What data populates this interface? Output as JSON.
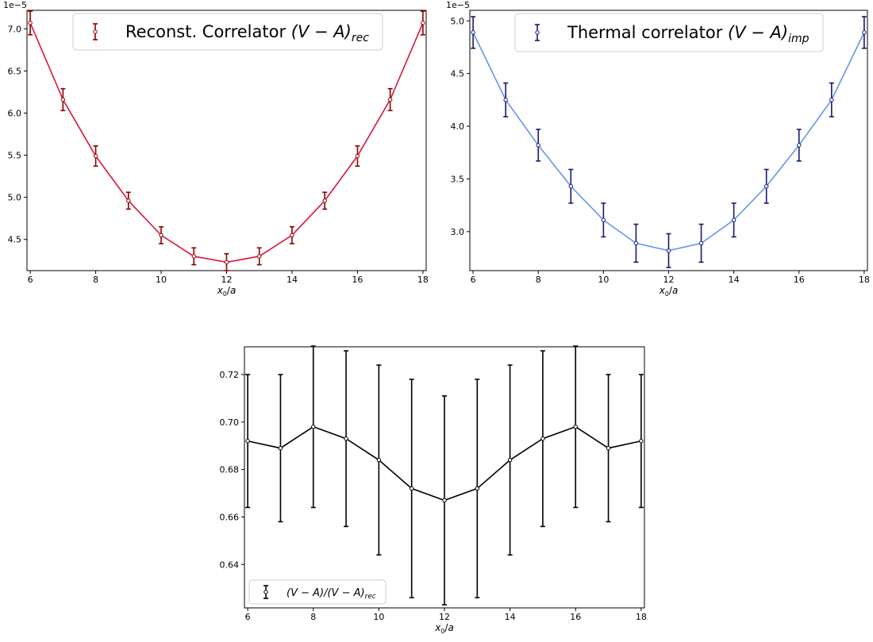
{
  "chart_data": [
    {
      "type": "line",
      "panel": "top-left",
      "x": [
        6,
        7,
        8,
        9,
        10,
        11,
        12,
        13,
        14,
        15,
        16,
        17,
        18
      ],
      "xlabel": "x0/a",
      "xticks": [
        "6",
        "8",
        "10",
        "12",
        "14",
        "16",
        "18"
      ],
      "ylim": [
        4.13,
        7.22
      ],
      "yticks": [
        "4.5",
        "5.0",
        "5.5",
        "6.0",
        "6.5",
        "7.0"
      ],
      "y_multiplier": "1e−5",
      "series": [
        {
          "name": "Reconst. Correlator (V − A)rec",
          "values": [
            7.07,
            6.16,
            5.49,
            4.96,
            4.55,
            4.3,
            4.23,
            4.3,
            4.55,
            4.96,
            5.49,
            6.16,
            7.07
          ],
          "errors": [
            0.14,
            0.13,
            0.12,
            0.1,
            0.1,
            0.1,
            0.1,
            0.1,
            0.1,
            0.1,
            0.12,
            0.13,
            0.14
          ],
          "line_color": "#dc143c",
          "errorbar_color": "#8b0000",
          "marker": "open-circle"
        }
      ],
      "legend": {
        "position": "top-center",
        "label_main": "Reconst. Correlator",
        "label_math": "(V − A)",
        "label_sub": "rec"
      }
    },
    {
      "type": "line",
      "panel": "top-right",
      "x": [
        6,
        7,
        8,
        9,
        10,
        11,
        12,
        13,
        14,
        15,
        16,
        17,
        18
      ],
      "xlabel": "x0/a",
      "xticks": [
        "6",
        "8",
        "10",
        "12",
        "14",
        "16",
        "18"
      ],
      "ylim": [
        2.63,
        5.1
      ],
      "yticks": [
        "3.0",
        "3.5",
        "4.0",
        "4.5",
        "5.0"
      ],
      "y_multiplier": "1e−5",
      "series": [
        {
          "name": "Thermal correlator (V − A)imp",
          "values": [
            4.89,
            4.25,
            3.82,
            3.43,
            3.11,
            2.89,
            2.82,
            2.89,
            3.11,
            3.43,
            3.82,
            4.25,
            4.89
          ],
          "errors": [
            0.15,
            0.16,
            0.15,
            0.16,
            0.16,
            0.18,
            0.16,
            0.18,
            0.16,
            0.16,
            0.15,
            0.16,
            0.15
          ],
          "line_color": "#6495ed",
          "errorbar_color": "#191970",
          "marker": "open-circle"
        }
      ],
      "legend": {
        "position": "top-center",
        "label_main": "Thermal correlator",
        "label_math": "(V − A)",
        "label_sub": "imp"
      }
    },
    {
      "type": "line",
      "panel": "bottom",
      "x": [
        6,
        7,
        8,
        9,
        10,
        11,
        12,
        13,
        14,
        15,
        16,
        17,
        18
      ],
      "xlabel": "x0/a",
      "xticks": [
        "6",
        "8",
        "10",
        "12",
        "14",
        "16",
        "18"
      ],
      "ylim": [
        0.6217,
        0.7317
      ],
      "yticks": [
        "0.64",
        "0.66",
        "0.68",
        "0.70",
        "0.72"
      ],
      "series": [
        {
          "name": "(V − A)/(V − A)rec",
          "values": [
            0.692,
            0.689,
            0.698,
            0.693,
            0.684,
            0.672,
            0.667,
            0.672,
            0.684,
            0.693,
            0.698,
            0.689,
            0.692
          ],
          "errors": [
            0.028,
            0.031,
            0.034,
            0.037,
            0.04,
            0.046,
            0.044,
            0.046,
            0.04,
            0.037,
            0.034,
            0.031,
            0.028
          ],
          "line_color": "#000000",
          "errorbar_color": "#000000",
          "marker": "open-circle"
        }
      ],
      "legend": {
        "position": "bottom-left",
        "label_math": "(V − A)/(V − A)",
        "label_sub": "rec"
      }
    }
  ]
}
